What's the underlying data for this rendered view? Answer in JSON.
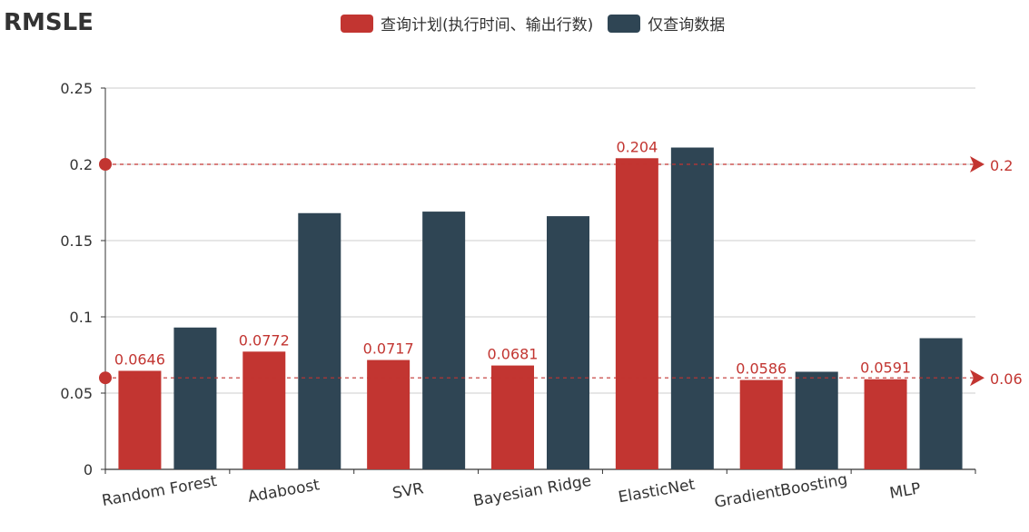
{
  "chart_data": {
    "type": "bar",
    "title": "RMSLE",
    "categories": [
      "Random Forest",
      "Adaboost",
      "SVR",
      "Bayesian Ridge",
      "ElasticNet",
      "GradientBoosting",
      "MLP"
    ],
    "series": [
      {
        "name": "查询计划(执行时间、输出行数)",
        "color": "#c23531",
        "values": [
          0.0646,
          0.0772,
          0.0717,
          0.0681,
          0.204,
          0.0586,
          0.0591
        ],
        "data_labels": [
          "0.0646",
          "0.0772",
          "0.0717",
          "0.0681",
          "0.204",
          "0.0586",
          "0.0591"
        ]
      },
      {
        "name": "仅查询数据",
        "color": "#2f4554",
        "values": [
          0.093,
          0.168,
          0.169,
          0.166,
          0.211,
          0.064,
          0.086
        ]
      }
    ],
    "ylim": [
      0,
      0.25
    ],
    "yticks": [
      "0",
      "0.05",
      "0.1",
      "0.15",
      "0.2",
      "0.25"
    ],
    "ytick_values": [
      0,
      0.05,
      0.1,
      0.15,
      0.2,
      0.25
    ],
    "grid": true,
    "legend_position": "top-center",
    "mark_lines": [
      {
        "value": 0.2,
        "label": "0.2",
        "color": "#c23531"
      },
      {
        "value": 0.06,
        "label": "0.06",
        "color": "#c23531"
      }
    ]
  }
}
